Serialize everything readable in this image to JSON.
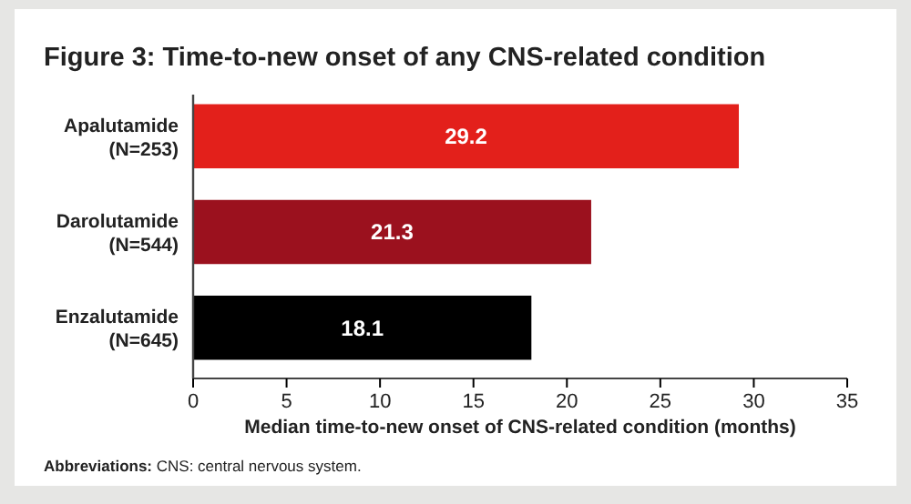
{
  "chart_data": {
    "type": "bar",
    "orientation": "horizontal",
    "title": "Figure 3: Time-to-new onset of any CNS-related condition",
    "categories": [
      "Apalutamide (N=253)",
      "Darolutamide (N=544)",
      "Enzalutamide (N=645)"
    ],
    "values": [
      29.2,
      21.3,
      18.1
    ],
    "colors": [
      "#e3201b",
      "#9b111e",
      "#000000"
    ],
    "xlim": [
      0,
      35
    ],
    "xticks": [
      0,
      5,
      10,
      15,
      20,
      25,
      30,
      35
    ],
    "xlabel": "Median time-to-new onset of CNS-related condition (months)",
    "data_labels": true,
    "grid": false,
    "annotations": [
      "Abbreviations: CNS: central nervous system."
    ]
  }
}
